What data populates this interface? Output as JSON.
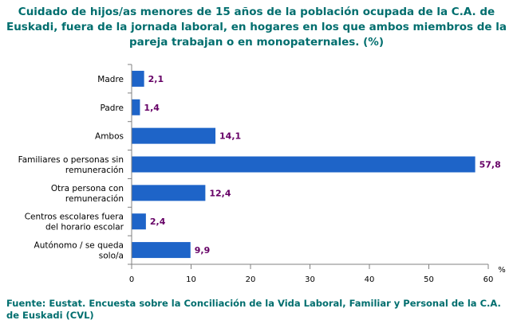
{
  "chart_data": {
    "type": "bar",
    "orientation": "horizontal",
    "title": "Cuidado de hijos/as menores de 15 años de la población ocupada de la C.A. de\nEuskadi, fuera de la jornada laboral, en hogares en los que ambos miembros de la\npareja trabajan o en monopaternales. (%)",
    "categories": [
      [
        "Madre"
      ],
      [
        "Padre"
      ],
      [
        "Ambos"
      ],
      [
        "Familiares o personas sin",
        "remuneración"
      ],
      [
        "Otra persona con",
        "remuneración"
      ],
      [
        "Centros escolares fuera",
        "del horario escolar"
      ],
      [
        "Autónomo / se queda",
        "solo/a"
      ]
    ],
    "values": [
      2.1,
      1.4,
      14.1,
      57.8,
      12.4,
      2.4,
      9.9
    ],
    "data_labels": [
      "2,1",
      "1,4",
      "14,1",
      "57,8",
      "12,4",
      "2,4",
      "9,9"
    ],
    "xlim": [
      0,
      60
    ],
    "xticks": [
      0,
      10,
      20,
      30,
      40,
      50,
      60
    ],
    "xlabel": "%",
    "ylabel": "",
    "grid": false,
    "colors": {
      "bar": "#1e64c8",
      "title": "#006e6e",
      "data_label": "#660066",
      "axis": "#808080"
    }
  },
  "source": "Fuente: Eustat. Encuesta sobre la Conciliación de la Vida Laboral, Familiar y Personal de la C.A. de Euskadi (CVL)"
}
